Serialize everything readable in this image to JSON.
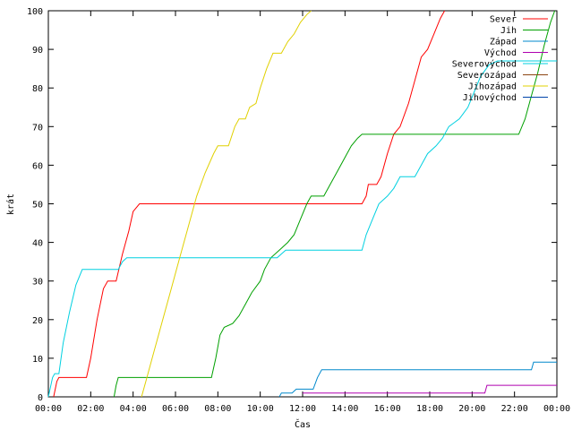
{
  "chart_data": {
    "type": "line",
    "title": "",
    "xlabel": "Čas",
    "ylabel": "krát",
    "xlim": [
      0,
      24
    ],
    "ylim": [
      0,
      100
    ],
    "x_ticks": [
      "00:00",
      "02:00",
      "04:00",
      "06:00",
      "08:00",
      "10:00",
      "12:00",
      "14:00",
      "16:00",
      "18:00",
      "20:00",
      "22:00",
      "00:00"
    ],
    "y_ticks": [
      0,
      10,
      20,
      30,
      40,
      50,
      60,
      70,
      80,
      90,
      100
    ],
    "grid": false,
    "legend_position": "top-right",
    "series": [
      {
        "name": "Sever",
        "color": "#ff0000",
        "points": [
          [
            0.25,
            0
          ],
          [
            0.4,
            4
          ],
          [
            0.5,
            5
          ],
          [
            1.8,
            5
          ],
          [
            2.0,
            10
          ],
          [
            2.3,
            20
          ],
          [
            2.6,
            28
          ],
          [
            2.8,
            30
          ],
          [
            3.2,
            30
          ],
          [
            3.5,
            37
          ],
          [
            3.8,
            43
          ],
          [
            4.0,
            48
          ],
          [
            4.3,
            50
          ],
          [
            14.8,
            50
          ],
          [
            15.0,
            52
          ],
          [
            15.1,
            55
          ],
          [
            15.5,
            55
          ],
          [
            15.7,
            57
          ],
          [
            16.0,
            63
          ],
          [
            16.3,
            68
          ],
          [
            16.6,
            70
          ],
          [
            17.0,
            76
          ],
          [
            17.3,
            82
          ],
          [
            17.6,
            88
          ],
          [
            17.9,
            90
          ],
          [
            18.2,
            94
          ],
          [
            18.5,
            98
          ],
          [
            18.7,
            100
          ]
        ]
      },
      {
        "name": "Jih",
        "color": "#00a000",
        "points": [
          [
            3.1,
            0
          ],
          [
            3.2,
            3
          ],
          [
            3.3,
            5
          ],
          [
            7.7,
            5
          ],
          [
            7.9,
            10
          ],
          [
            8.1,
            16
          ],
          [
            8.3,
            18
          ],
          [
            8.7,
            19
          ],
          [
            9.0,
            21
          ],
          [
            9.3,
            24
          ],
          [
            9.6,
            27
          ],
          [
            10.0,
            30
          ],
          [
            10.2,
            33
          ],
          [
            10.5,
            36
          ],
          [
            10.9,
            38
          ],
          [
            11.3,
            40
          ],
          [
            11.6,
            42
          ],
          [
            11.9,
            46
          ],
          [
            12.2,
            50
          ],
          [
            12.4,
            52
          ],
          [
            13.0,
            52
          ],
          [
            13.3,
            55
          ],
          [
            13.6,
            58
          ],
          [
            14.0,
            62
          ],
          [
            14.3,
            65
          ],
          [
            14.6,
            67
          ],
          [
            14.8,
            68
          ],
          [
            22.2,
            68
          ],
          [
            22.5,
            72
          ],
          [
            22.8,
            78
          ],
          [
            23.1,
            84
          ],
          [
            23.4,
            91
          ],
          [
            23.7,
            97
          ],
          [
            23.9,
            100
          ]
        ]
      },
      {
        "name": "Západ",
        "color": "#0088cc",
        "points": [
          [
            10.9,
            0
          ],
          [
            11.0,
            1
          ],
          [
            11.5,
            1
          ],
          [
            11.7,
            2
          ],
          [
            12.5,
            2
          ],
          [
            12.7,
            5
          ],
          [
            12.9,
            7
          ],
          [
            22.8,
            7
          ],
          [
            22.9,
            9
          ],
          [
            24.0,
            9
          ]
        ]
      },
      {
        "name": "Východ",
        "color": "#b000b0",
        "points": [
          [
            12.0,
            1
          ],
          [
            20.6,
            1
          ],
          [
            20.7,
            3
          ],
          [
            24.0,
            3
          ]
        ]
      },
      {
        "name": "Severovýchod",
        "color": "#00d0e0",
        "points": [
          [
            0.0,
            0
          ],
          [
            0.2,
            5
          ],
          [
            0.3,
            6
          ],
          [
            0.5,
            6
          ],
          [
            0.7,
            14
          ],
          [
            1.0,
            22
          ],
          [
            1.3,
            29
          ],
          [
            1.6,
            33
          ],
          [
            3.3,
            33
          ],
          [
            3.5,
            35
          ],
          [
            3.7,
            36
          ],
          [
            10.8,
            36
          ],
          [
            11.0,
            37
          ],
          [
            11.2,
            38
          ],
          [
            14.8,
            38
          ],
          [
            15.0,
            42
          ],
          [
            15.3,
            46
          ],
          [
            15.6,
            50
          ],
          [
            16.0,
            52
          ],
          [
            16.3,
            54
          ],
          [
            16.6,
            57
          ],
          [
            17.3,
            57
          ],
          [
            17.6,
            60
          ],
          [
            17.9,
            63
          ],
          [
            18.3,
            65
          ],
          [
            18.6,
            67
          ],
          [
            18.9,
            70
          ],
          [
            19.4,
            72
          ],
          [
            19.8,
            75
          ],
          [
            20.1,
            79
          ],
          [
            20.4,
            83
          ],
          [
            20.8,
            86
          ],
          [
            21.2,
            87
          ],
          [
            24.0,
            87
          ]
        ]
      },
      {
        "name": "Severozápad",
        "color": "#8b4513",
        "points": []
      },
      {
        "name": "Jihozápad",
        "color": "#e0d000",
        "points": [
          [
            4.4,
            0
          ],
          [
            4.6,
            4
          ],
          [
            5.0,
            12
          ],
          [
            5.4,
            20
          ],
          [
            5.8,
            28
          ],
          [
            6.2,
            36
          ],
          [
            6.6,
            44
          ],
          [
            7.0,
            52
          ],
          [
            7.4,
            58
          ],
          [
            7.8,
            63
          ],
          [
            8.0,
            65
          ],
          [
            8.5,
            65
          ],
          [
            8.8,
            70
          ],
          [
            9.0,
            72
          ],
          [
            9.3,
            72
          ],
          [
            9.5,
            75
          ],
          [
            9.8,
            76
          ],
          [
            10.0,
            80
          ],
          [
            10.3,
            85
          ],
          [
            10.6,
            89
          ],
          [
            11.0,
            89
          ],
          [
            11.3,
            92
          ],
          [
            11.6,
            94
          ],
          [
            11.9,
            97
          ],
          [
            12.2,
            99
          ],
          [
            12.4,
            100
          ]
        ]
      },
      {
        "name": "Jihovýchod",
        "color": "#0044aa",
        "points": []
      }
    ]
  }
}
